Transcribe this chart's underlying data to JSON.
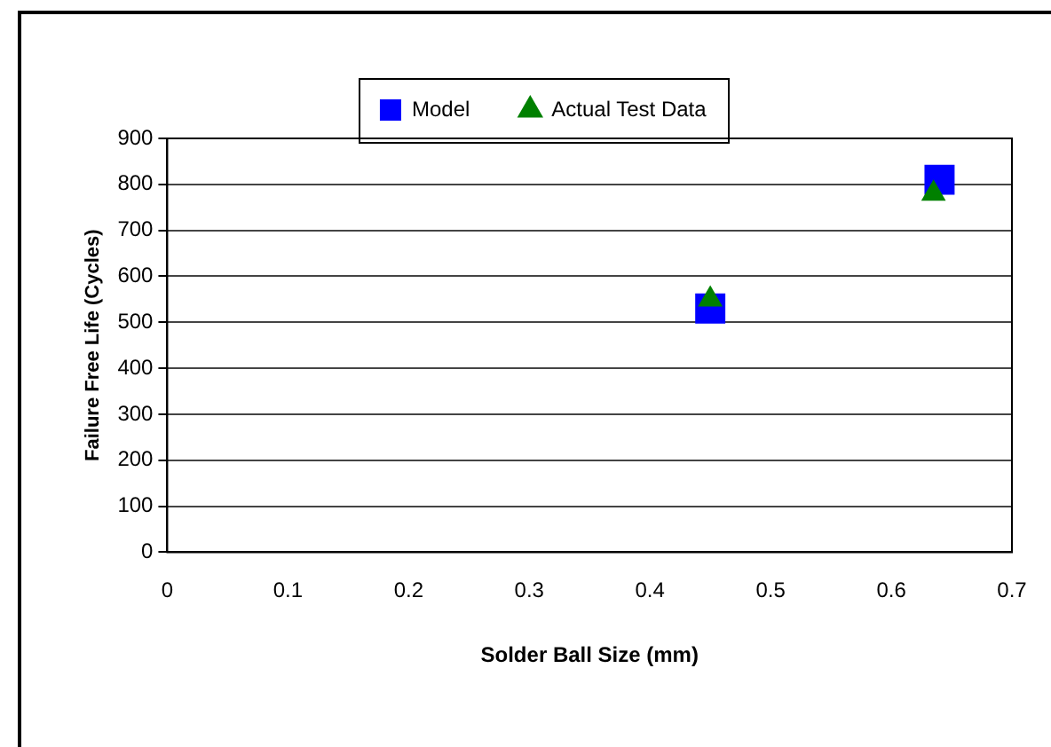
{
  "chart_data": {
    "type": "scatter",
    "xlabel": "Solder Ball Size (mm)",
    "ylabel": "Failure Free Life (Cycles)",
    "xlim": [
      0,
      0.7
    ],
    "xticks": [
      0,
      0.1,
      0.2,
      0.3,
      0.4,
      0.5,
      0.6,
      0.7
    ],
    "ylim": [
      0,
      900
    ],
    "yticks": [
      0,
      100,
      200,
      300,
      400,
      500,
      600,
      700,
      800,
      900
    ],
    "grid": "y",
    "legend": "top",
    "series": [
      {
        "name": "Model",
        "color": "#0000ff",
        "marker": "square",
        "x": [
          0.45,
          0.64
        ],
        "values": [
          530,
          810
        ]
      },
      {
        "name": "Actual Test Data",
        "color": "#008000",
        "marker": "triangle",
        "x": [
          0.45,
          0.635
        ],
        "values": [
          550,
          780
        ]
      }
    ]
  }
}
